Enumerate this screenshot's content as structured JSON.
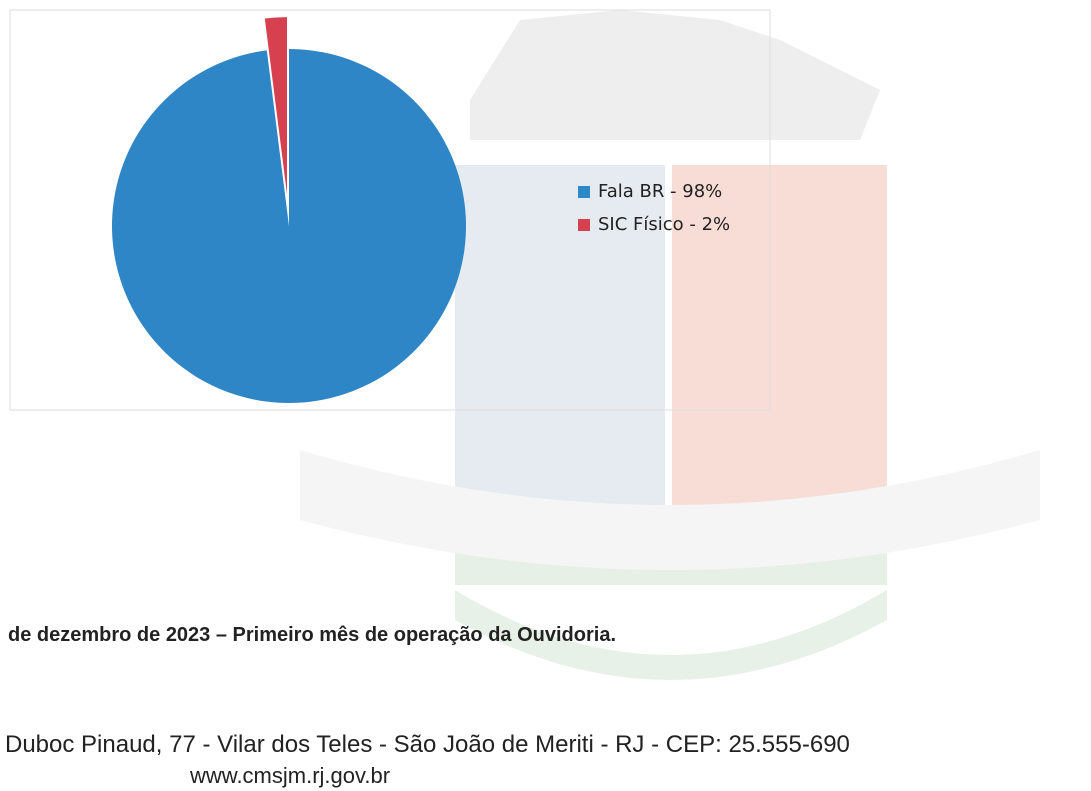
{
  "chart_data": {
    "type": "pie",
    "categories": [
      "Fala BR - 98%",
      "SIC Físico - 2%"
    ],
    "values": [
      98,
      2
    ],
    "colors": [
      "#2f86c6",
      "#d7404e"
    ]
  },
  "caption": "de dezembro de 2023 – Primeiro mês de operação da Ouvidoria.",
  "footer": {
    "address": "Duboc Pinaud, 77 - Vilar dos Teles - São João de Meriti - RJ - CEP: 25.555-690",
    "website": "www.cmsjm.rj.gov.br"
  }
}
